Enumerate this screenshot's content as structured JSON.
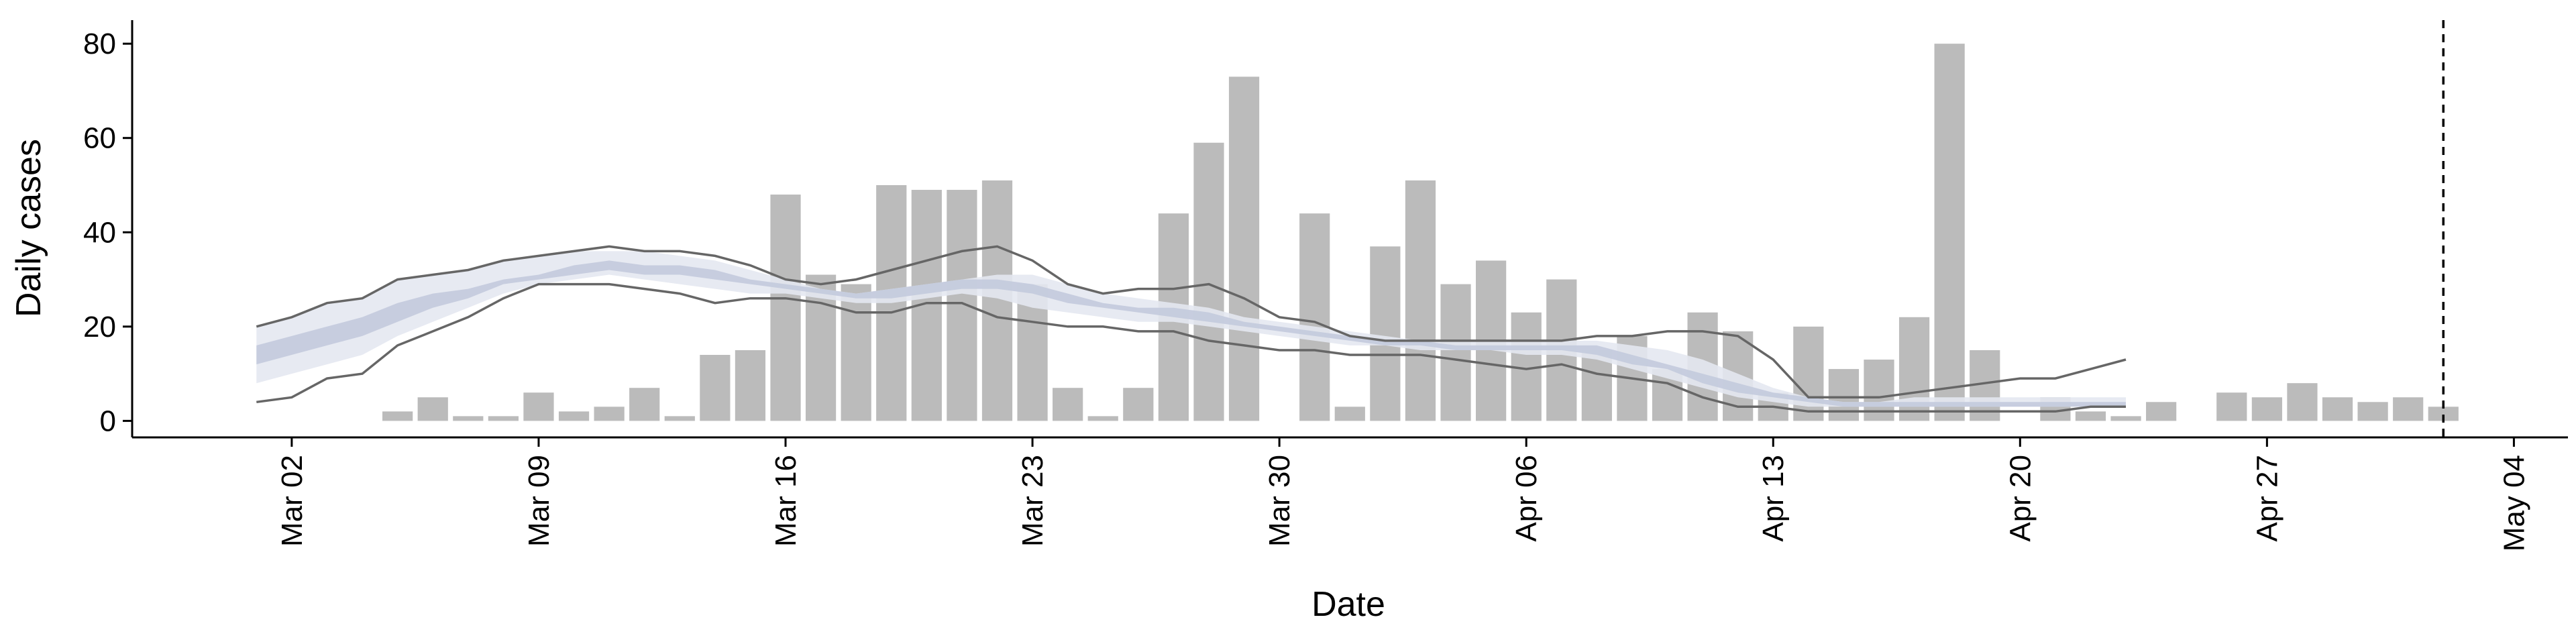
{
  "chart_data": {
    "type": "bar-band",
    "x_label": "Date",
    "y_label": "Daily cases",
    "xlim": [
      "Feb 26",
      "May 05"
    ],
    "xticks": [
      "Mar 02",
      "Mar 09",
      "Mar 16",
      "Mar 23",
      "Mar 30",
      "Apr 06",
      "Apr 13",
      "Apr 20",
      "Apr 27",
      "May 04"
    ],
    "ylim": [
      -3.5,
      85
    ],
    "yticks": [
      0,
      20,
      40,
      60,
      80
    ],
    "vline_x": "May 02",
    "bars": {
      "color": "#bbbbbb",
      "x": [
        "Mar 05",
        "Mar 06",
        "Mar 07",
        "Mar 08",
        "Mar 09",
        "Mar 10",
        "Mar 11",
        "Mar 12",
        "Mar 13",
        "Mar 14",
        "Mar 15",
        "Mar 16",
        "Mar 17",
        "Mar 18",
        "Mar 19",
        "Mar 20",
        "Mar 21",
        "Mar 22",
        "Mar 23",
        "Mar 24",
        "Mar 25",
        "Mar 26",
        "Mar 27",
        "Mar 28",
        "Mar 29",
        "Mar 30",
        "Mar 31",
        "Apr 01",
        "Apr 02",
        "Apr 03",
        "Apr 04",
        "Apr 05",
        "Apr 06",
        "Apr 07",
        "Apr 08",
        "Apr 09",
        "Apr 10",
        "Apr 11",
        "Apr 12",
        "Apr 13",
        "Apr 14",
        "Apr 15",
        "Apr 16",
        "Apr 17",
        "Apr 18",
        "Apr 19",
        "Apr 20",
        "Apr 21",
        "Apr 22",
        "Apr 23",
        "Apr 24",
        "Apr 25",
        "Apr 26",
        "Apr 27",
        "Apr 28",
        "Apr 29",
        "Apr 30",
        "May 01",
        "May 02"
      ],
      "values": [
        2,
        5,
        1,
        1,
        6,
        2,
        3,
        7,
        1,
        14,
        15,
        48,
        31,
        29,
        50,
        49,
        49,
        51,
        29,
        7,
        1,
        7,
        44,
        59,
        73,
        0,
        44,
        3,
        37,
        51,
        29,
        34,
        23,
        30,
        15,
        18,
        11,
        23,
        19,
        6,
        20,
        11,
        13,
        22,
        80,
        15,
        0,
        5,
        2,
        1,
        4,
        0,
        6,
        5,
        8,
        5,
        4,
        5,
        3
      ]
    },
    "model_x": [
      "Mar 01",
      "Mar 02",
      "Mar 03",
      "Mar 04",
      "Mar 05",
      "Mar 06",
      "Mar 07",
      "Mar 08",
      "Mar 09",
      "Mar 10",
      "Mar 11",
      "Mar 12",
      "Mar 13",
      "Mar 14",
      "Mar 15",
      "Mar 16",
      "Mar 17",
      "Mar 18",
      "Mar 19",
      "Mar 20",
      "Mar 21",
      "Mar 22",
      "Mar 23",
      "Mar 24",
      "Mar 25",
      "Mar 26",
      "Mar 27",
      "Mar 28",
      "Mar 29",
      "Mar 30",
      "Mar 31",
      "Apr 01",
      "Apr 02",
      "Apr 03",
      "Apr 04",
      "Apr 05",
      "Apr 06",
      "Apr 07",
      "Apr 08",
      "Apr 09",
      "Apr 10",
      "Apr 11",
      "Apr 12",
      "Apr 13",
      "Apr 14",
      "Apr 15",
      "Apr 16",
      "Apr 17",
      "Apr 18",
      "Apr 19",
      "Apr 20",
      "Apr 21",
      "Apr 22",
      "Apr 23"
    ],
    "bands": [
      {
        "color": "#e4e8f1",
        "opacity": 0.9,
        "lower": [
          8,
          10,
          12,
          14,
          18,
          21,
          24,
          27,
          29,
          30,
          31,
          30,
          29,
          28,
          27,
          27,
          26,
          25,
          25,
          26,
          27,
          26,
          24,
          23,
          22,
          21,
          21,
          20,
          19,
          18,
          17,
          16,
          16,
          15,
          15,
          15,
          14,
          14,
          13,
          11,
          9,
          7,
          5,
          4,
          3,
          3,
          3,
          3,
          3,
          3,
          3,
          3,
          3,
          3
        ],
        "upper": [
          20,
          22,
          25,
          26,
          30,
          31,
          32,
          34,
          35,
          36,
          36,
          36,
          35,
          34,
          32,
          30,
          28,
          27,
          28,
          29,
          30,
          31,
          31,
          29,
          27,
          26,
          25,
          24,
          22,
          21,
          20,
          19,
          18,
          17,
          17,
          17,
          17,
          17,
          17,
          16,
          15,
          13,
          10,
          7,
          5,
          4,
          4,
          5,
          5,
          5,
          5,
          5,
          5,
          5
        ]
      },
      {
        "color": "#c3cadd",
        "opacity": 0.9,
        "lower": [
          12,
          14,
          16,
          18,
          21,
          24,
          26,
          29,
          30,
          31,
          32,
          31,
          31,
          30,
          29,
          28,
          27,
          26,
          26,
          27,
          28,
          28,
          27,
          25,
          24,
          23,
          22,
          21,
          20,
          19,
          18,
          17,
          16,
          16,
          15,
          15,
          15,
          15,
          14,
          12,
          11,
          8,
          6,
          5,
          4,
          3,
          3,
          3,
          3,
          3,
          3,
          3,
          3,
          3
        ],
        "upper": [
          16,
          18,
          20,
          22,
          25,
          27,
          28,
          30,
          31,
          33,
          34,
          33,
          33,
          32,
          30,
          29,
          28,
          27,
          28,
          29,
          30,
          30,
          29,
          27,
          25,
          24,
          24,
          23,
          21,
          20,
          19,
          18,
          17,
          17,
          16,
          16,
          16,
          16,
          16,
          14,
          12,
          10,
          8,
          6,
          5,
          4,
          4,
          4,
          4,
          4,
          4,
          4,
          4,
          4
        ]
      }
    ],
    "lines": [
      {
        "color": "#666666",
        "values": [
          20,
          22,
          25,
          26,
          30,
          31,
          32,
          34,
          35,
          36,
          37,
          36,
          36,
          35,
          33,
          30,
          29,
          30,
          32,
          34,
          36,
          37,
          34,
          29,
          27,
          28,
          28,
          29,
          26,
          22,
          21,
          18,
          17,
          17,
          17,
          17,
          17,
          17,
          18,
          18,
          19,
          19,
          18,
          13,
          5,
          5,
          5,
          6,
          7,
          8,
          9,
          9,
          11,
          13
        ]
      },
      {
        "color": "#666666",
        "values": [
          4,
          5,
          9,
          10,
          16,
          19,
          22,
          26,
          29,
          29,
          29,
          28,
          27,
          25,
          26,
          26,
          25,
          23,
          23,
          25,
          25,
          22,
          21,
          20,
          20,
          19,
          19,
          17,
          16,
          15,
          15,
          14,
          14,
          14,
          13,
          12,
          11,
          12,
          10,
          9,
          8,
          5,
          3,
          3,
          2,
          2,
          2,
          2,
          2,
          2,
          2,
          2,
          3,
          3
        ]
      }
    ]
  }
}
